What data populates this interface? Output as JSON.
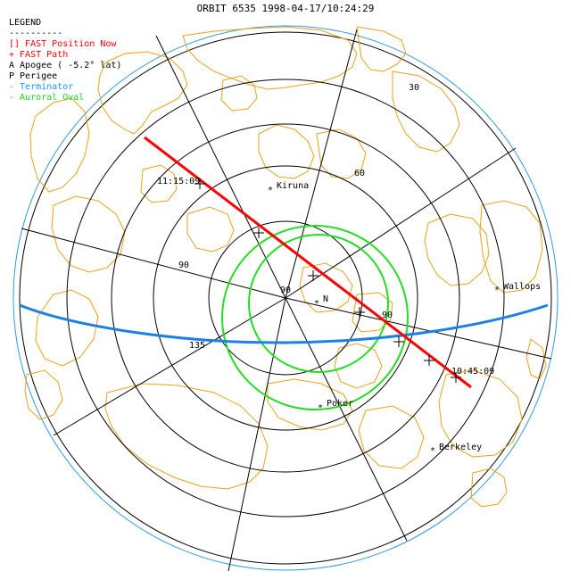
{
  "title": "ORBIT 6535  1998-04-17/10:24:29",
  "legend": {
    "heading": "LEGEND",
    "rule": "----------",
    "items": [
      {
        "text": "[] FAST Position Now",
        "color": "#ff0000"
      },
      {
        "text": "+ FAST Path",
        "color": "#ff0000"
      },
      {
        "text": "A Apogee ( -5.2° lat)",
        "color": "#000000"
      },
      {
        "text": "P Perigee",
        "color": "#000000"
      },
      {
        "text": "- Terminator",
        "color": "#1e90ff"
      },
      {
        "text": "- Auroral Oval",
        "color": "#22cc22"
      }
    ]
  },
  "colors": {
    "coast": "#e8a317",
    "path": "#ff0000",
    "terminator": "#1e7fe6",
    "oval": "#22dd22",
    "grid": "#000000",
    "limb": "#3399dd"
  },
  "grid_labels": {
    "lat30": "30",
    "lat60": "60",
    "lon90": "90",
    "lon135": "135",
    "center": "90",
    "n": "N",
    "sub90": "90"
  },
  "times": {
    "start": "11:15:09",
    "end": "10:45:09"
  },
  "stations": [
    {
      "name": "Kiruna"
    },
    {
      "name": "Wallops"
    },
    {
      "name": "Poker"
    },
    {
      "name": "Berkeley"
    }
  ]
}
